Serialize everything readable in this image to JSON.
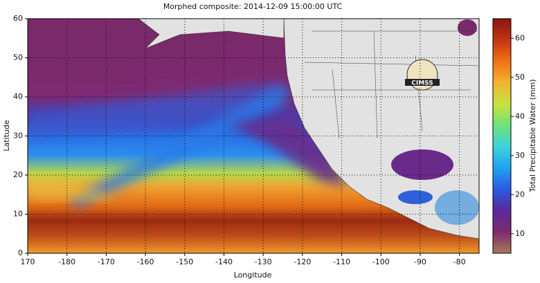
{
  "title": "Morphed composite: 2014-12-09 15:00:00 UTC",
  "map": {
    "xlabel": "Longitude",
    "ylabel": "Latitude",
    "xlim": [
      170,
      -75
    ],
    "xticks": [
      170,
      -180,
      -170,
      -160,
      -150,
      -140,
      -130,
      -120,
      -110,
      -100,
      -90,
      -80
    ],
    "ylim": [
      0,
      60
    ],
    "yticks": [
      0,
      10,
      20,
      30,
      40,
      50,
      60
    ]
  },
  "colorbar": {
    "label": "Total Precipitable Water (mm)",
    "lim": [
      5,
      65
    ],
    "ticks": [
      10,
      20,
      30,
      40,
      50,
      60
    ],
    "colors": [
      "#a57a5c",
      "#7d2a6e",
      "#5a2a9a",
      "#2a5ae0",
      "#22a2f2",
      "#3ed2dc",
      "#6ee27a",
      "#c8e23e",
      "#f2b232",
      "#f07214",
      "#c23412",
      "#8c1410"
    ]
  },
  "logo": "CIMSS"
}
